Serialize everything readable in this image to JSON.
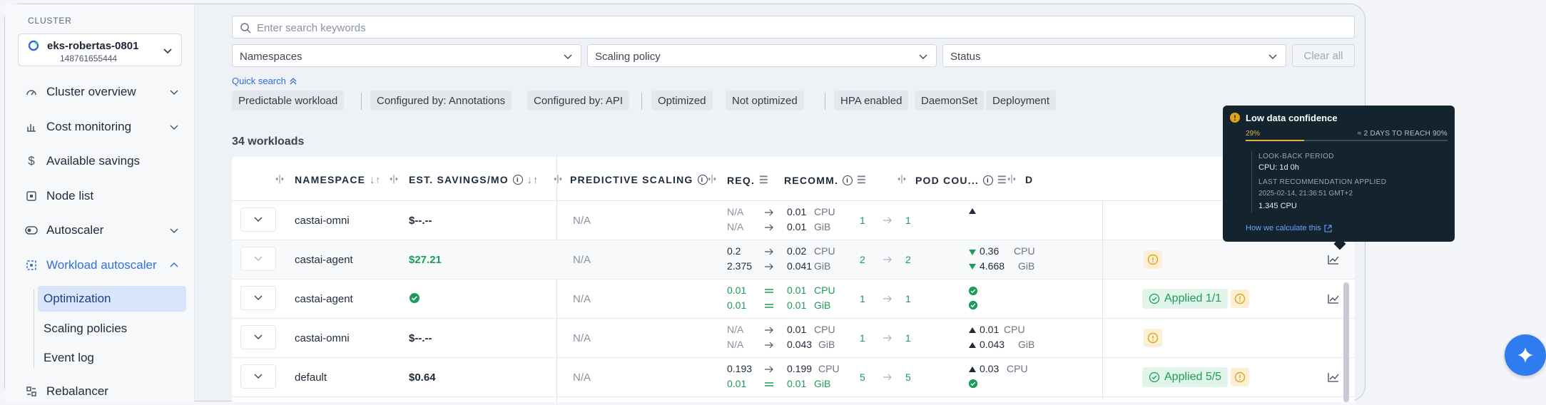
{
  "sidebar": {
    "section_label": "CLUSTER",
    "cluster": {
      "name": "eks-robertas-0801",
      "id": "148761655444"
    },
    "nav": [
      {
        "label": "Cluster overview",
        "icon": "gauge-icon",
        "expandable": true
      },
      {
        "label": "Cost monitoring",
        "icon": "bar-chart-icon",
        "expandable": true
      },
      {
        "label": "Available savings",
        "icon": "dollar-icon",
        "expandable": false
      },
      {
        "label": "Node list",
        "icon": "node-icon",
        "expandable": false
      },
      {
        "label": "Autoscaler",
        "icon": "toggle-icon",
        "expandable": true
      },
      {
        "label": "Workload autoscaler",
        "icon": "workload-icon",
        "expandable": true,
        "active": true
      },
      {
        "label": "Rebalancer",
        "icon": "rebalancer-icon",
        "expandable": false
      }
    ],
    "subnav": [
      {
        "label": "Optimization",
        "selected": true
      },
      {
        "label": "Scaling policies"
      },
      {
        "label": "Event log"
      }
    ]
  },
  "search": {
    "placeholder": "Enter search keywords"
  },
  "filters": {
    "namespaces": "Namespaces",
    "scaling_policy": "Scaling policy",
    "status": "Status",
    "clear_all": "Clear all"
  },
  "quick_search": {
    "label": "Quick search",
    "chips": [
      "Predictable workload",
      "Configured by: Annotations",
      "Configured by: API",
      "Optimized",
      "Not optimized",
      "HPA enabled",
      "DaemonSet",
      "Deployment"
    ]
  },
  "workload_count": "34 workloads",
  "columns": {
    "namespace": "NAMESPACE",
    "savings": "EST. SAVINGS/MO",
    "predictive": "PREDICTIVE SCALING",
    "req": "REQ.",
    "recomm": "RECOMM.",
    "pod": "POD COU...",
    "d": "D"
  },
  "rows": [
    {
      "namespace": "castai-omni",
      "savings": "$--.--",
      "predictive": "N/A",
      "req": [
        "N/A",
        "N/A"
      ],
      "recomm": [
        "0.01",
        "0.01"
      ],
      "units": [
        "CPU",
        "GiB"
      ],
      "pods": [
        "1",
        "1"
      ],
      "diff": [
        "",
        ""
      ],
      "diff_units": [
        "",
        ""
      ]
    },
    {
      "namespace": "castai-agent",
      "savings": "$27.21",
      "predictive": "N/A",
      "req": [
        "0.2",
        "2.375"
      ],
      "recomm": [
        "0.02",
        "0.041"
      ],
      "units": [
        "CPU",
        "GiB"
      ],
      "pods": [
        "2",
        "2"
      ],
      "diff": [
        "0.36",
        "4.668"
      ],
      "diff_units": [
        "CPU",
        "GiB"
      ]
    },
    {
      "namespace": "castai-agent",
      "savings": "",
      "predictive": "N/A",
      "req": [
        "0.01",
        "0.01"
      ],
      "recomm": [
        "0.01",
        "0.01"
      ],
      "units": [
        "CPU",
        "GiB"
      ],
      "pods": [
        "1",
        "1"
      ],
      "diff": [
        "",
        ""
      ],
      "diff_units": [
        "",
        ""
      ],
      "status": "Applied 1/1"
    },
    {
      "namespace": "castai-omni",
      "savings": "$--.--",
      "predictive": "N/A",
      "req": [
        "N/A",
        "N/A"
      ],
      "recomm": [
        "0.01",
        "0.043"
      ],
      "units": [
        "CPU",
        "GiB"
      ],
      "pods": [
        "1",
        "1"
      ],
      "diff": [
        "0.01",
        "0.043"
      ],
      "diff_units": [
        "CPU",
        "GiB"
      ]
    },
    {
      "namespace": "default",
      "savings": "$0.64",
      "predictive": "N/A",
      "req": [
        "0.193",
        "0.01"
      ],
      "recomm": [
        "0.199",
        "0.01"
      ],
      "units": [
        "CPU",
        "GiB"
      ],
      "pods": [
        "5",
        "5"
      ],
      "diff": [
        "0.03",
        ""
      ],
      "diff_units": [
        "CPU",
        ""
      ],
      "status": "Applied 5/5"
    }
  ],
  "tooltip": {
    "title": "Low data confidence",
    "progress_label": "29%",
    "progress": 0.29,
    "eta": "≈ 2 DAYS TO REACH 90%",
    "lookback_key": "LOOK-BACK PERIOD",
    "lookback_val": "CPU: 1d 0h",
    "last_key": "LAST RECOMMENDATION APPLIED",
    "last_date": "2025-02-14, 21:36:51 GMT+2",
    "last_val": "1.345 CPU",
    "link": "How we calculate this"
  },
  "colors": {
    "accent": "#2f6fe0",
    "green": "#1d9b5a",
    "warning": "#e3a21a",
    "tooltip_bg": "#13242f"
  }
}
